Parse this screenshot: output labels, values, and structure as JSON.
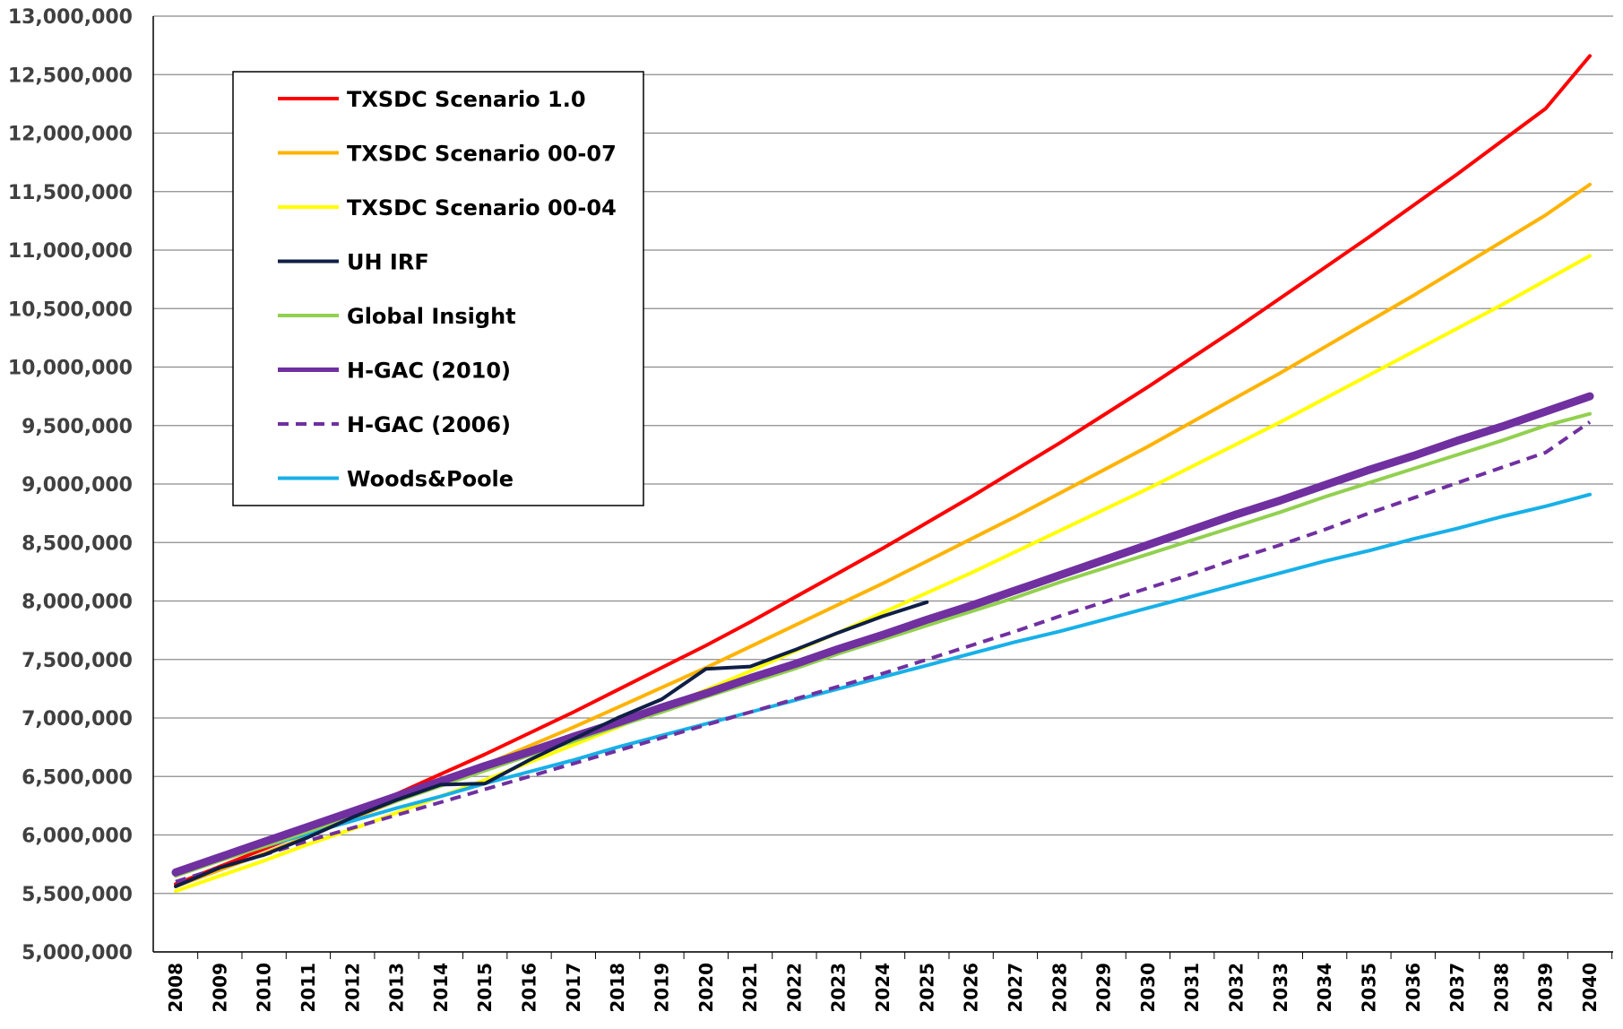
{
  "chart_data": {
    "type": "line",
    "title": "",
    "xlabel": "",
    "ylabel": "",
    "x": [
      2008,
      2009,
      2010,
      2011,
      2012,
      2013,
      2014,
      2015,
      2016,
      2017,
      2018,
      2019,
      2020,
      2021,
      2022,
      2023,
      2024,
      2025,
      2026,
      2027,
      2028,
      2029,
      2030,
      2031,
      2032,
      2033,
      2034,
      2035,
      2036,
      2037,
      2038,
      2039,
      2040
    ],
    "x_tick_labels": [
      "2008",
      "2009",
      "2010",
      "2011",
      "2012",
      "2013",
      "2014",
      "2015",
      "2016",
      "2017",
      "2018",
      "2019",
      "2020",
      "2021",
      "2022",
      "2023",
      "2024",
      "2025",
      "2026",
      "2027",
      "2028",
      "2029",
      "2030",
      "2031",
      "2032",
      "2033",
      "2034",
      "2035",
      "2036",
      "2037",
      "2038",
      "2039",
      "2040"
    ],
    "ylim": [
      5000000,
      13000000
    ],
    "y_tick_values": [
      5000000,
      5500000,
      6000000,
      6500000,
      7000000,
      7500000,
      8000000,
      8500000,
      9000000,
      9500000,
      10000000,
      10500000,
      11000000,
      11500000,
      12000000,
      12500000,
      13000000
    ],
    "y_tick_labels": [
      "5,000,000",
      "5,500,000",
      "6,000,000",
      "6,500,000",
      "7,000,000",
      "7,500,000",
      "8,000,000",
      "8,500,000",
      "9,000,000",
      "9,500,000",
      "10,000,000",
      "10,500,000",
      "11,000,000",
      "11,500,000",
      "12,000,000",
      "12,500,000",
      "13,000,000"
    ],
    "grid": "horizontal",
    "legend_position": "top-left",
    "series": [
      {
        "name": "TXSDC Scenario 1.0",
        "color": "#ff0000",
        "style": "solid",
        "width": 4,
        "values": [
          5580000,
          5730000,
          5880000,
          6030000,
          6190000,
          6350000,
          6520000,
          6690000,
          6870000,
          7050000,
          7240000,
          7430000,
          7620000,
          7820000,
          8030000,
          8240000,
          8450000,
          8670000,
          8890000,
          9120000,
          9350000,
          9590000,
          9830000,
          10080000,
          10330000,
          10590000,
          10850000,
          11110000,
          11380000,
          11650000,
          11930000,
          12210000,
          12660000
        ]
      },
      {
        "name": "TXSDC Scenario 00-07",
        "color": "#ffb300",
        "style": "solid",
        "width": 4,
        "values": [
          5560000,
          5700000,
          5840000,
          5990000,
          6140000,
          6290000,
          6440000,
          6600000,
          6760000,
          6920000,
          7090000,
          7260000,
          7430000,
          7610000,
          7790000,
          7970000,
          8150000,
          8340000,
          8530000,
          8720000,
          8920000,
          9120000,
          9320000,
          9530000,
          9740000,
          9950000,
          10170000,
          10390000,
          10610000,
          10840000,
          11070000,
          11300000,
          11560000
        ]
      },
      {
        "name": "TXSDC Scenario 00-04",
        "color": "#ffff00",
        "style": "solid",
        "width": 4,
        "values": [
          5520000,
          5650000,
          5780000,
          5920000,
          6050000,
          6190000,
          6330000,
          6470000,
          6620000,
          6770000,
          6920000,
          7080000,
          7240000,
          7400000,
          7570000,
          7730000,
          7900000,
          8070000,
          8240000,
          8420000,
          8600000,
          8780000,
          8960000,
          9150000,
          9340000,
          9530000,
          9730000,
          9930000,
          10130000,
          10330000,
          10530000,
          10740000,
          10950000
        ]
      },
      {
        "name": "UH IRF",
        "color": "#0f1f45",
        "style": "solid",
        "width": 4,
        "values": [
          5560000,
          5720000,
          5830000,
          5980000,
          6150000,
          6300000,
          6430000,
          6440000,
          6640000,
          6820000,
          7000000,
          7160000,
          7420000,
          7440000,
          7580000,
          7730000,
          7870000,
          7990000,
          null,
          null,
          null,
          null,
          null,
          null,
          null,
          null,
          null,
          null,
          null,
          null,
          null,
          null,
          null
        ]
      },
      {
        "name": "Global Insight",
        "color": "#92d050",
        "style": "solid",
        "width": 4,
        "values": [
          5650000,
          5780000,
          5900000,
          6030000,
          6160000,
          6290000,
          6420000,
          6550000,
          6680000,
          6800000,
          6930000,
          7050000,
          7180000,
          7300000,
          7420000,
          7550000,
          7670000,
          7790000,
          7910000,
          8030000,
          8160000,
          8280000,
          8400000,
          8520000,
          8640000,
          8760000,
          8890000,
          9010000,
          9130000,
          9250000,
          9370000,
          9500000,
          9600000
        ]
      },
      {
        "name": "H-GAC (2010)",
        "color": "#7030a0",
        "style": "solid",
        "width": 9,
        "values": [
          5680000,
          5810000,
          5940000,
          6070000,
          6200000,
          6330000,
          6460000,
          6590000,
          6710000,
          6840000,
          6960000,
          7090000,
          7210000,
          7340000,
          7460000,
          7590000,
          7710000,
          7840000,
          7960000,
          8090000,
          8220000,
          8350000,
          8480000,
          8610000,
          8740000,
          8860000,
          8990000,
          9120000,
          9240000,
          9370000,
          9490000,
          9620000,
          9750000
        ]
      },
      {
        "name": "H-GAC (2006)",
        "color": "#7030a0",
        "style": "dashed",
        "width": 4,
        "values": [
          5600000,
          5720000,
          5830000,
          5950000,
          6060000,
          6170000,
          6280000,
          6390000,
          6500000,
          6610000,
          6720000,
          6830000,
          6940000,
          7050000,
          7160000,
          7270000,
          7380000,
          7500000,
          7620000,
          7740000,
          7870000,
          7990000,
          8110000,
          8230000,
          8360000,
          8480000,
          8610000,
          8750000,
          8880000,
          9010000,
          9140000,
          9270000,
          9530000
        ]
      },
      {
        "name": "Woods&Poole",
        "color": "#17b0e8",
        "style": "solid",
        "width": 4,
        "values": [
          5680000,
          5790000,
          5900000,
          6010000,
          6120000,
          6230000,
          6330000,
          6440000,
          6540000,
          6640000,
          6750000,
          6850000,
          6950000,
          7050000,
          7150000,
          7250000,
          7350000,
          7450000,
          7550000,
          7650000,
          7740000,
          7840000,
          7940000,
          8040000,
          8140000,
          8240000,
          8340000,
          8430000,
          8530000,
          8620000,
          8720000,
          8810000,
          8910000
        ]
      }
    ]
  }
}
